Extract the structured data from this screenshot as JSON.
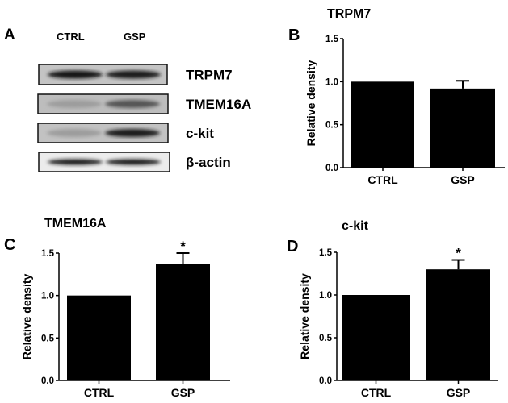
{
  "panel_a": {
    "letter": "A",
    "lanes": [
      "CTRL",
      "GSP"
    ],
    "blot": [
      {
        "label": "TRPM7",
        "bands": [
          0.95,
          0.9
        ]
      },
      {
        "label": "TMEM16A",
        "bands": [
          0.3,
          0.65
        ]
      },
      {
        "label": "c-kit",
        "bands": [
          0.3,
          0.9
        ]
      },
      {
        "label": "β-actin",
        "bands": [
          0.95,
          0.95
        ]
      }
    ]
  },
  "chart_data": [
    {
      "panel": "B",
      "type": "bar",
      "title": "TRPM7",
      "categories": [
        "CTRL",
        "GSP"
      ],
      "values": [
        1.0,
        0.92
      ],
      "error_upper": [
        null,
        1.01
      ],
      "significance": [
        "",
        ""
      ],
      "ylabel": "Relative density",
      "ylim": [
        0,
        1.5
      ],
      "yticks": [
        "0.0",
        "0.5",
        "1.0",
        "1.5"
      ]
    },
    {
      "panel": "C",
      "type": "bar",
      "title": "TMEM16A",
      "categories": [
        "CTRL",
        "GSP"
      ],
      "values": [
        1.0,
        1.37
      ],
      "error_upper": [
        null,
        1.5
      ],
      "significance": [
        "",
        "*"
      ],
      "ylabel": "Relative density",
      "ylim": [
        0,
        1.5
      ],
      "yticks": [
        "0.0",
        "0.5",
        "1.0",
        "1.5"
      ]
    },
    {
      "panel": "D",
      "type": "bar",
      "title": "c-kit",
      "categories": [
        "CTRL",
        "GSP"
      ],
      "values": [
        1.0,
        1.3
      ],
      "error_upper": [
        null,
        1.41
      ],
      "significance": [
        "",
        "*"
      ],
      "ylabel": "Relative density",
      "ylim": [
        0,
        1.5
      ],
      "yticks": [
        "0.0",
        "0.5",
        "1.0",
        "1.5"
      ]
    }
  ]
}
